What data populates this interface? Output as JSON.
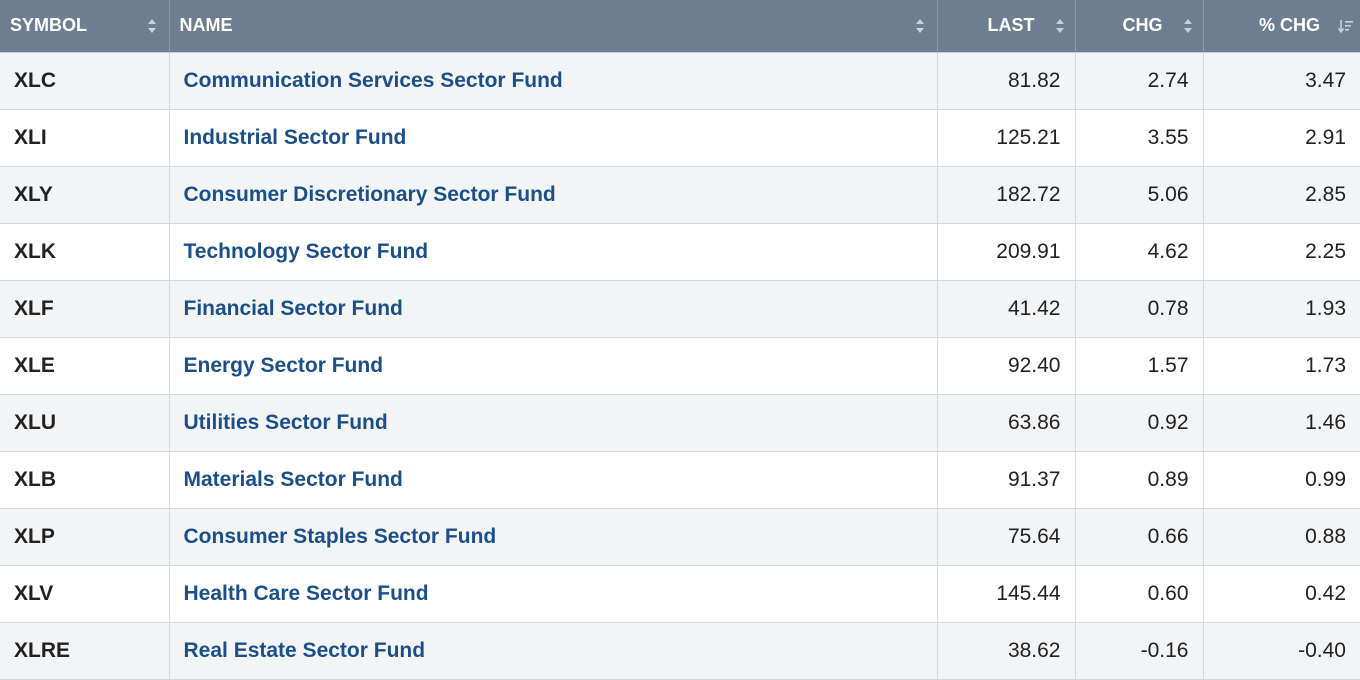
{
  "header": {
    "symbol": "SYMBOL",
    "name": "NAME",
    "last": "LAST",
    "chg": "CHG",
    "pct_chg": "% CHG"
  },
  "rows": [
    {
      "symbol": "XLC",
      "name": "Communication Services Sector Fund",
      "last": "81.82",
      "chg": "2.74",
      "pct_chg": "3.47"
    },
    {
      "symbol": "XLI",
      "name": "Industrial Sector Fund",
      "last": "125.21",
      "chg": "3.55",
      "pct_chg": "2.91"
    },
    {
      "symbol": "XLY",
      "name": "Consumer Discretionary Sector Fund",
      "last": "182.72",
      "chg": "5.06",
      "pct_chg": "2.85"
    },
    {
      "symbol": "XLK",
      "name": "Technology Sector Fund",
      "last": "209.91",
      "chg": "4.62",
      "pct_chg": "2.25"
    },
    {
      "symbol": "XLF",
      "name": "Financial Sector Fund",
      "last": "41.42",
      "chg": "0.78",
      "pct_chg": "1.93"
    },
    {
      "symbol": "XLE",
      "name": "Energy Sector Fund",
      "last": "92.40",
      "chg": "1.57",
      "pct_chg": "1.73"
    },
    {
      "symbol": "XLU",
      "name": "Utilities Sector Fund",
      "last": "63.86",
      "chg": "0.92",
      "pct_chg": "1.46"
    },
    {
      "symbol": "XLB",
      "name": "Materials Sector Fund",
      "last": "91.37",
      "chg": "0.89",
      "pct_chg": "0.99"
    },
    {
      "symbol": "XLP",
      "name": "Consumer Staples Sector Fund",
      "last": "75.64",
      "chg": "0.66",
      "pct_chg": "0.88"
    },
    {
      "symbol": "XLV",
      "name": "Health Care Sector Fund",
      "last": "145.44",
      "chg": "0.60",
      "pct_chg": "0.42"
    },
    {
      "symbol": "XLRE",
      "name": "Real Estate Sector Fund",
      "last": "38.62",
      "chg": "-0.16",
      "pct_chg": "-0.40"
    }
  ],
  "icons": {
    "sortable": "sort-updown-icon",
    "sorted_desc": "sort-descending-icon"
  },
  "colors": {
    "header_bg": "#6e7d90",
    "link": "#1b4f8a",
    "row_alt": "#f2f4f6"
  }
}
